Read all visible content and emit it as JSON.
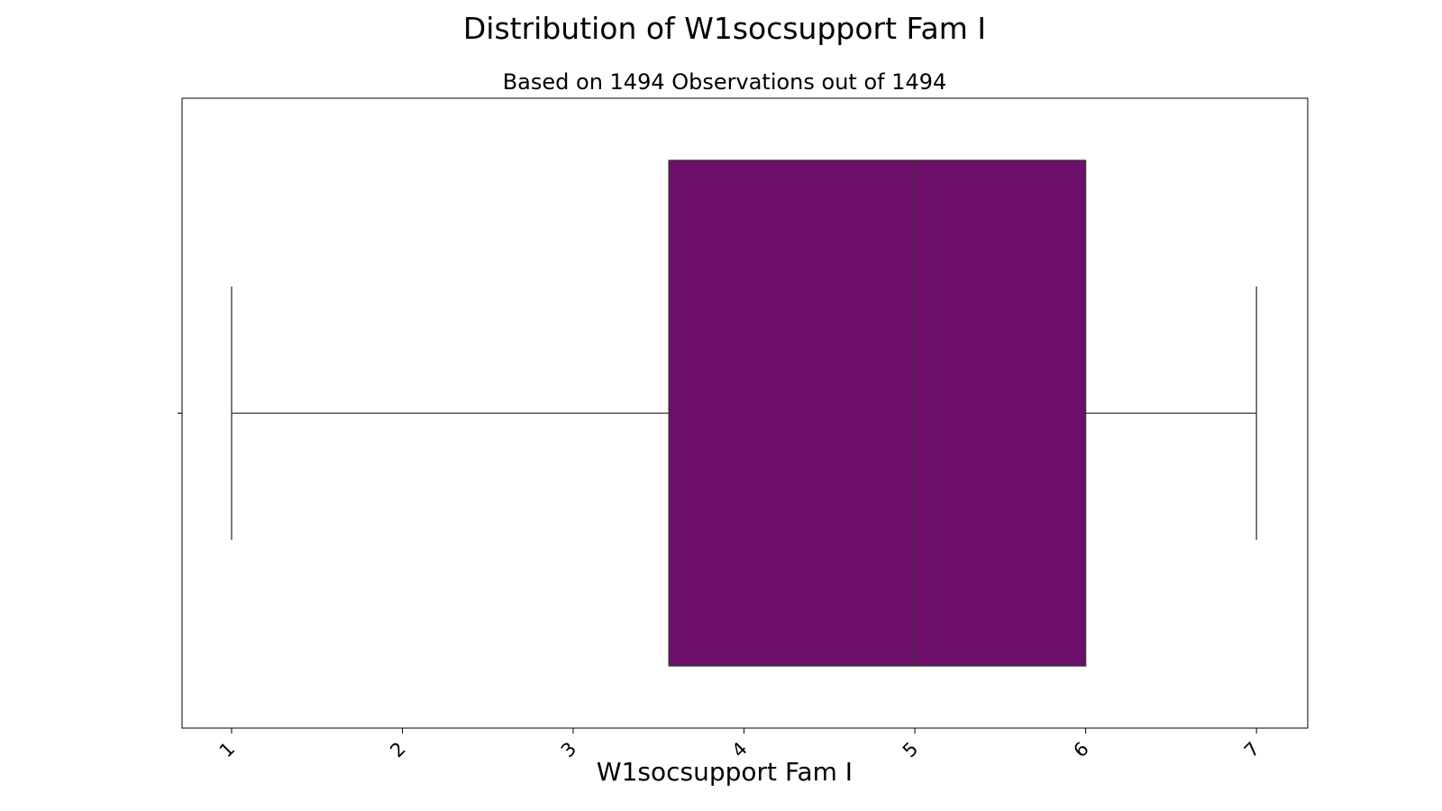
{
  "chart_data": {
    "type": "boxplot",
    "title": "Distribution of W1socsupport Fam I",
    "subtitle": "Based on 1494 Observations out of 1494",
    "xlabel": "W1socsupport Fam I",
    "ylabel": "",
    "xlim": [
      0.71,
      7.3
    ],
    "xticks": [
      1,
      2,
      3,
      4,
      5,
      6,
      7
    ],
    "xtick_labels": [
      "1",
      "2",
      "3",
      "4",
      "5",
      "6",
      "7"
    ],
    "orientation": "horizontal",
    "grid": false,
    "box": {
      "whisker_low": 1,
      "q1": 3.56,
      "median": 5,
      "q3": 6,
      "whisker_high": 7
    },
    "colors": {
      "box_fill": "#6e106b",
      "line": "#333333",
      "axes": "#000000"
    }
  }
}
